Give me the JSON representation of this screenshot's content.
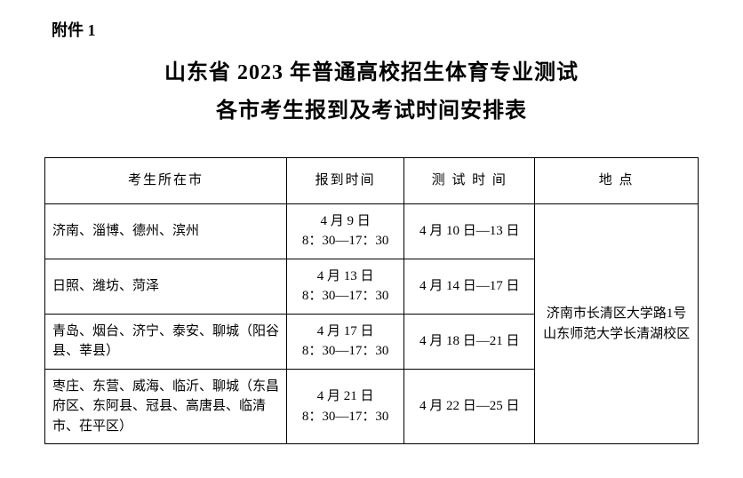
{
  "attachment_label": "附件 1",
  "title_line1": "山东省 2023 年普通高校招生体育专业测试",
  "title_line2": "各市考生报到及考试时间安排表",
  "table": {
    "headers": {
      "city": "考生所在市",
      "checkin": "报到时间",
      "test": "测 试 时 间",
      "location": "地 点"
    },
    "rows": [
      {
        "city": "济南、淄博、德州、滨州",
        "checkin_date": "4 月 9 日",
        "checkin_time": "8：30—17：30",
        "test_time": "4 月 10 日—13 日"
      },
      {
        "city": "日照、潍坊、菏泽",
        "checkin_date": "4 月 13 日",
        "checkin_time": "8：30—17：30",
        "test_time": "4 月 14 日—17 日"
      },
      {
        "city": "青岛、烟台、济宁、泰安、聊城（阳谷县、莘县）",
        "checkin_date": "4 月 17 日",
        "checkin_time": "8：30—17：30",
        "test_time": "4 月 18 日—21 日"
      },
      {
        "city": "枣庄、东营、威海、临沂、聊城（东昌府区、东阿县、冠县、高唐县、临清市、茌平区）",
        "checkin_date": "4 月 21 日",
        "checkin_time": "8：30—17：30",
        "test_time": "4 月 22 日—25 日"
      }
    ],
    "location": "济南市长清区大学路1号山东师范大学长清湖校区"
  },
  "style": {
    "background_color": "#ffffff",
    "text_color": "#000000",
    "border_color": "#000000",
    "title_fontsize": 24,
    "body_fontsize": 15,
    "attachment_fontsize": 18
  }
}
